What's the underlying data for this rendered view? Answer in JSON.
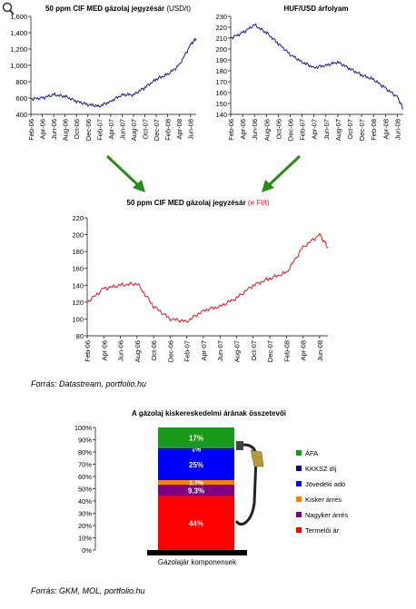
{
  "page": {
    "zoom_icon": "magnifier-icon",
    "source_top": "Forrás: Datastream, portfolio.hu",
    "source_bottom": "Forrás: GKM, MOL, portfolio.hu",
    "colors": {
      "usd_series": "#1c1c8c",
      "huf_series": "#e8101c",
      "arrow": "#2a8a1a"
    }
  },
  "chart_data": [
    {
      "id": "diesel-usd",
      "type": "line",
      "title": "50 ppm CIF MED gázolaj jegyzésár",
      "title_unit": " (USD/t)",
      "x_ticks": [
        "Feb-06",
        "Apr-06",
        "Jun-06",
        "Aug-06",
        "Oct-06",
        "Dec-06",
        "Feb-07",
        "Apr-07",
        "Jun-07",
        "Aug-07",
        "Oct-07",
        "Dec-07",
        "Feb-08",
        "Apr-08",
        "Jun-08"
      ],
      "y_ticks": [
        "400",
        "600",
        "800",
        "1,000",
        "1,200",
        "1,400",
        "1,600"
      ],
      "ylim": [
        400,
        1600
      ],
      "grid": false,
      "series": [
        {
          "color": "#1c1c8c",
          "x": [
            0,
            1,
            2,
            3,
            4,
            5,
            6,
            7,
            8,
            9,
            10,
            11,
            12,
            13,
            14,
            14.5
          ],
          "values": [
            590,
            600,
            640,
            620,
            560,
            520,
            500,
            560,
            640,
            640,
            730,
            830,
            890,
            1000,
            1250,
            1330
          ]
        }
      ]
    },
    {
      "id": "huf-usd",
      "type": "line",
      "title": "HUF/USD árfolyam",
      "x_ticks": [
        "Feb-06",
        "Apr-06",
        "Jun-06",
        "Aug-06",
        "Oct-06",
        "Dec-06",
        "Feb-07",
        "Apr-07",
        "Jun-07",
        "Aug-07",
        "Oct-07",
        "Dec-07",
        "Feb-08",
        "Apr-08",
        "Jun-08"
      ],
      "y_ticks": [
        "140",
        "150",
        "160",
        "170",
        "180",
        "190",
        "200",
        "210",
        "220",
        "230"
      ],
      "ylim": [
        140,
        230
      ],
      "grid": false,
      "series": [
        {
          "color": "#1c1c8c",
          "x": [
            0,
            1,
            2,
            3,
            4,
            5,
            6,
            7,
            8,
            9,
            10,
            11,
            12,
            13,
            14,
            14.5
          ],
          "values": [
            210,
            215,
            222,
            215,
            205,
            195,
            188,
            183,
            185,
            188,
            182,
            176,
            172,
            164,
            156,
            145
          ]
        }
      ]
    },
    {
      "id": "diesel-huf",
      "type": "line",
      "title": "50 ppm CIF MED gázolaj jegyzésár",
      "title_unit": " (e Ft/t)",
      "x_ticks": [
        "Feb-06",
        "Apr-06",
        "Jun-06",
        "Aug-06",
        "Oct-06",
        "Dec-06",
        "Feb-07",
        "Apr-07",
        "Jun-07",
        "Aug-07",
        "Oct-07",
        "Dec-07",
        "Feb-08",
        "Apr-08",
        "Jun-08"
      ],
      "y_ticks": [
        "80",
        "100",
        "120",
        "140",
        "160",
        "180",
        "200",
        "220"
      ],
      "ylim": [
        80,
        220
      ],
      "grid": false,
      "series": [
        {
          "color": "#e8101c",
          "x": [
            0,
            1,
            2,
            3,
            4,
            5,
            6,
            7,
            8,
            9,
            10,
            11,
            12,
            13,
            14,
            14.5
          ],
          "values": [
            120,
            136,
            140,
            142,
            115,
            100,
            97,
            110,
            115,
            125,
            140,
            148,
            155,
            185,
            200,
            185
          ]
        }
      ]
    },
    {
      "id": "components",
      "type": "bar",
      "stacked": true,
      "title": "A gázolaj kiskereskedelmi árának összetevői",
      "xlabel": "Gázolajár komponensek",
      "y_ticks": [
        "0%",
        "10%",
        "20%",
        "30%",
        "40%",
        "50%",
        "60%",
        "70%",
        "80%",
        "90%",
        "100%"
      ],
      "ylim": [
        0,
        100
      ],
      "legend_position": "right",
      "series": [
        {
          "name": "Termelői ár",
          "value": 44,
          "label": "44%",
          "color": "#ff0000"
        },
        {
          "name": "Nagyker árrés",
          "value": 9.3,
          "label": "9.3%",
          "color": "#800080"
        },
        {
          "name": "Kisker árrés",
          "value": 3.7,
          "label": "3.7%",
          "color": "#ff7f00"
        },
        {
          "name": "Jövedéki adó",
          "value": 25,
          "label": "25%",
          "color": "#0000ff"
        },
        {
          "name": "KKKSZ díj",
          "value": 1,
          "label": "1%",
          "color": "#000080"
        },
        {
          "name": "ÁFA",
          "value": 17,
          "label": "17%",
          "color": "#1a9a1a"
        }
      ]
    }
  ]
}
